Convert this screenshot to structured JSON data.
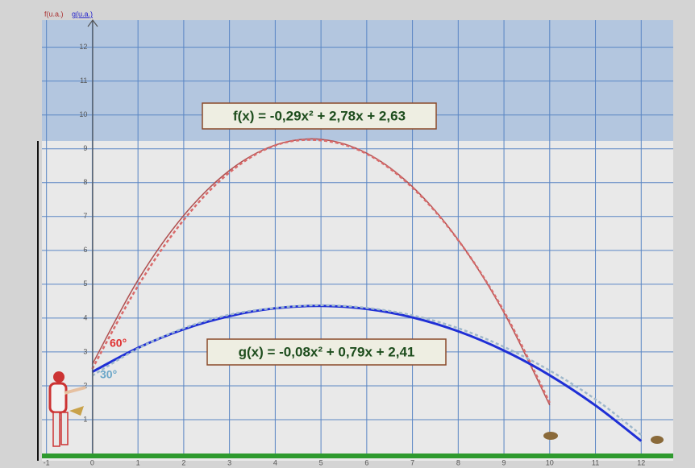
{
  "chart_data": {
    "type": "line",
    "axis_label_f": "f(u.a.)",
    "axis_label_g": "g(u.a.)",
    "x": [
      0,
      1,
      2,
      3,
      4,
      5,
      6,
      7,
      8,
      9,
      10,
      11,
      12
    ],
    "series": [
      {
        "color": "#b05050",
        "dash": false,
        "values": [
          2.63,
          5.12,
          7.03,
          8.36,
          9.11,
          9.28,
          8.87,
          7.88,
          6.31,
          4.16,
          1.43,
          null,
          null
        ]
      },
      {
        "color": "#d96a6a",
        "dash": true,
        "values": [
          2.5,
          4.95,
          6.9,
          8.3,
          9.1,
          9.25,
          8.85,
          7.85,
          6.3,
          4.2,
          1.5,
          null,
          null
        ]
      },
      {
        "color": "#1f2fd6",
        "dash": false,
        "values": [
          2.41,
          3.12,
          3.67,
          4.06,
          4.29,
          4.36,
          4.27,
          4.02,
          3.61,
          3.04,
          2.31,
          1.42,
          0.37
        ]
      },
      {
        "color": "#9fb8cc",
        "dash": true,
        "values": [
          2.3,
          3.1,
          3.7,
          4.1,
          4.3,
          4.38,
          4.3,
          4.08,
          3.7,
          3.15,
          2.45,
          1.6,
          0.55
        ]
      }
    ],
    "annotations": [
      "f(x) = -0,29x² + 2,78x + 2,63",
      "g(x) = -0,08x² + 0,79x + 2,41",
      "60°",
      "30°"
    ],
    "xlim": [
      -1.1,
      12.7
    ],
    "ylim": [
      0,
      12.8
    ],
    "xticks": [
      -1,
      0,
      1,
      2,
      3,
      4,
      5,
      6,
      7,
      8,
      9,
      10,
      11,
      12
    ],
    "yticks": [
      1,
      2,
      3,
      4,
      5,
      6,
      7,
      8,
      9,
      10,
      11,
      12
    ],
    "grid": true
  }
}
